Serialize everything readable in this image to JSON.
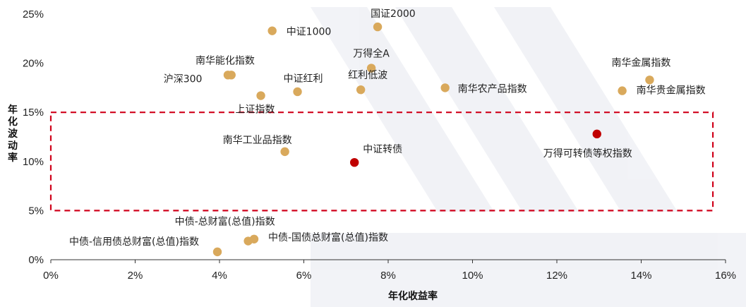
{
  "chart_data": {
    "type": "scatter",
    "xlabel": "年化收益率",
    "ylabel": "年化波动率",
    "xlim": [
      0,
      16
    ],
    "ylim": [
      0,
      25
    ],
    "x_ticks": [
      "0%",
      "2%",
      "4%",
      "6%",
      "8%",
      "10%",
      "12%",
      "14%",
      "16%"
    ],
    "y_ticks": [
      "0%",
      "5%",
      "10%",
      "15%",
      "20%",
      "25%"
    ],
    "grid": false,
    "highlight_band": {
      "y_from": 5,
      "y_to": 15,
      "x_from": 0,
      "x_to": 15.7,
      "style": "dashed",
      "color": "#d0021b"
    },
    "colors": {
      "default": "#d9a95c",
      "highlight": "#c00000"
    },
    "points": [
      {
        "label": "国证2000",
        "x": 7.75,
        "y": 23.7,
        "highlight": false
      },
      {
        "label": "中证1000",
        "x": 5.25,
        "y": 23.3,
        "highlight": false
      },
      {
        "label": "万得全A",
        "x": 7.6,
        "y": 19.5,
        "highlight": false
      },
      {
        "label": "南华能化指数",
        "x": 4.2,
        "y": 18.8,
        "highlight": false
      },
      {
        "label": "沪深300",
        "x": 4.28,
        "y": 18.8,
        "highlight": false
      },
      {
        "label": "南华金属指数",
        "x": 14.2,
        "y": 18.3,
        "highlight": false
      },
      {
        "label": "红利低波",
        "x": 7.35,
        "y": 17.3,
        "highlight": false
      },
      {
        "label": "南华农产品指数",
        "x": 9.35,
        "y": 17.5,
        "highlight": false
      },
      {
        "label": "中证红利",
        "x": 5.85,
        "y": 17.1,
        "highlight": false
      },
      {
        "label": "南华贵金属指数",
        "x": 13.55,
        "y": 17.2,
        "highlight": false
      },
      {
        "label": "上证指数",
        "x": 4.98,
        "y": 16.7,
        "highlight": false
      },
      {
        "label": "万得可转债等权指数",
        "x": 12.95,
        "y": 12.8,
        "highlight": true
      },
      {
        "label": "南华工业品指数",
        "x": 5.55,
        "y": 11.0,
        "highlight": false
      },
      {
        "label": "中证转债",
        "x": 7.2,
        "y": 9.9,
        "highlight": true
      },
      {
        "label": "中债-国债总财富(总值)指数",
        "x": 4.82,
        "y": 2.1,
        "highlight": false
      },
      {
        "label": "中债-总财富(总值)指数",
        "x": 4.68,
        "y": 1.9,
        "highlight": false
      },
      {
        "label": "中债-信用债总财富(总值)指数",
        "x": 3.95,
        "y": 0.8,
        "highlight": false
      }
    ]
  }
}
